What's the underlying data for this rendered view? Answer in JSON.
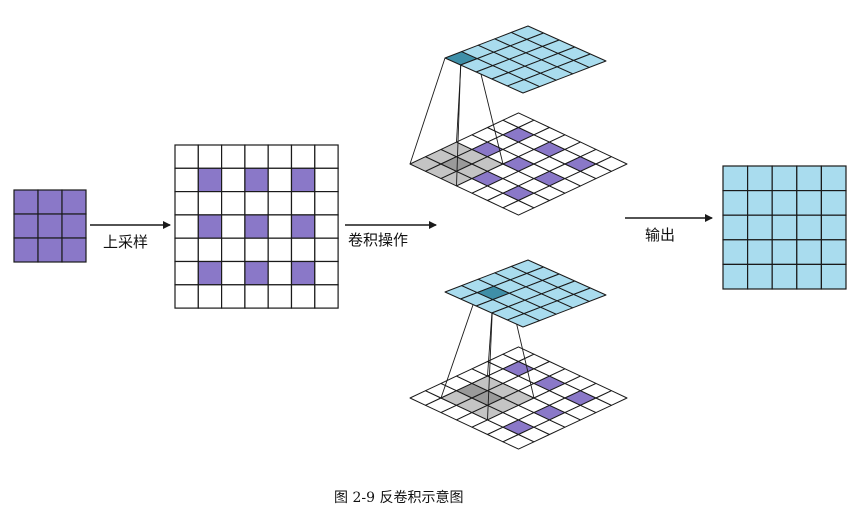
{
  "labels": {
    "upsample": "上采样",
    "convolution": "卷积操作",
    "output": "输出"
  },
  "caption": "图 2-9  反卷积示意图",
  "colors": {
    "purple": "#8a78c8",
    "cyan": "#a9dcee",
    "cyan_dark": "#3f8fa8",
    "gray": "#c4c4c4",
    "gray_dark": "#9a9a9a",
    "line": "#1a1a1a"
  },
  "grids": {
    "input_size": 3,
    "upsampled_size": 7,
    "upsampled_filled": [
      [
        1,
        1
      ],
      [
        1,
        3
      ],
      [
        1,
        5
      ],
      [
        3,
        1
      ],
      [
        3,
        3
      ],
      [
        3,
        5
      ],
      [
        5,
        1
      ],
      [
        5,
        3
      ],
      [
        5,
        5
      ]
    ],
    "output_size": 5,
    "top_kernel_cells": [
      [
        0,
        0
      ],
      [
        0,
        1
      ],
      [
        0,
        2
      ],
      [
        1,
        0
      ],
      [
        1,
        1
      ],
      [
        1,
        2
      ],
      [
        2,
        0
      ],
      [
        2,
        1
      ],
      [
        2,
        2
      ]
    ],
    "top_kernel_dark": [
      [
        1,
        1
      ]
    ],
    "top_highlight_output": [
      0,
      0
    ],
    "bottom_kernel_cells": [
      [
        1,
        1
      ],
      [
        1,
        2
      ],
      [
        1,
        3
      ],
      [
        2,
        1
      ],
      [
        2,
        2
      ],
      [
        2,
        3
      ],
      [
        3,
        1
      ],
      [
        3,
        2
      ],
      [
        3,
        3
      ]
    ],
    "bottom_kernel_dark": [
      [
        1,
        2
      ],
      [
        2,
        2
      ]
    ],
    "bottom_highlight_output": [
      1,
      1
    ]
  }
}
